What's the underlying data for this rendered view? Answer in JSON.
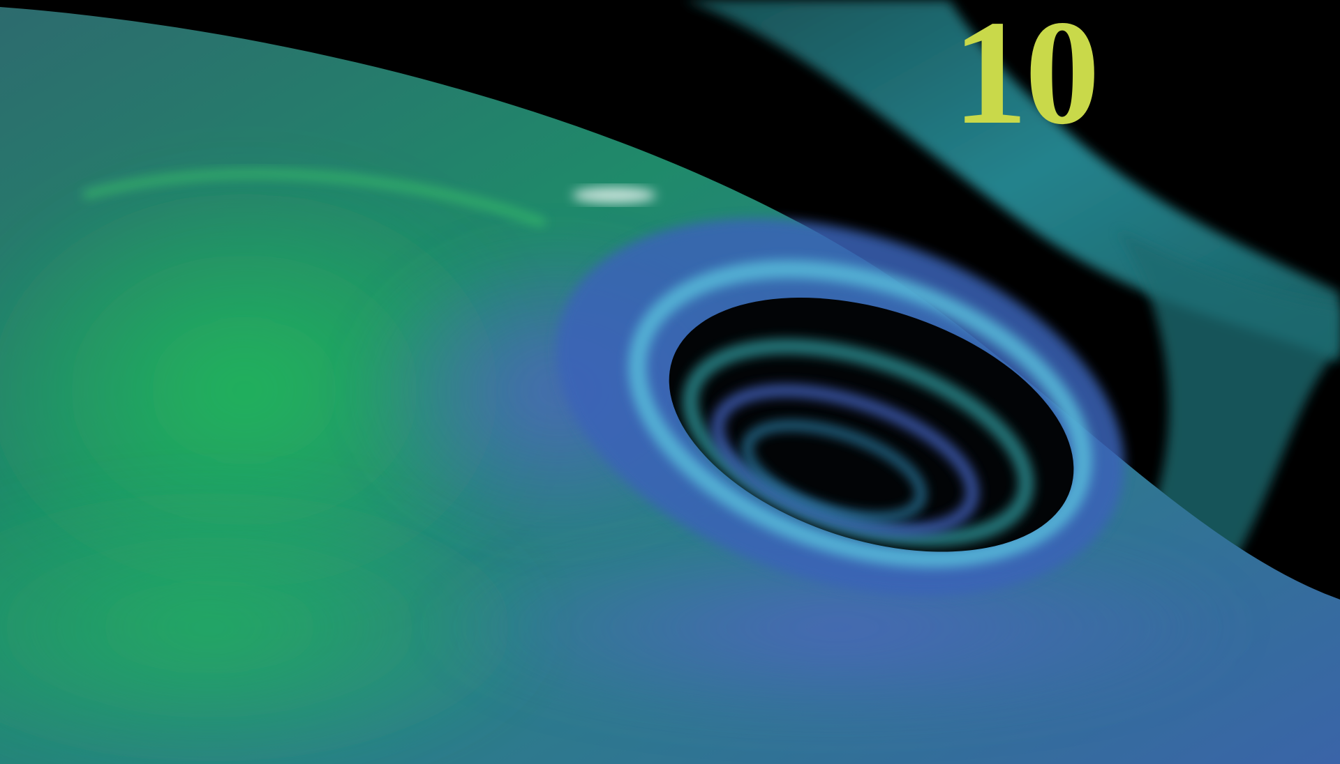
{
  "overlay_text": "10"
}
